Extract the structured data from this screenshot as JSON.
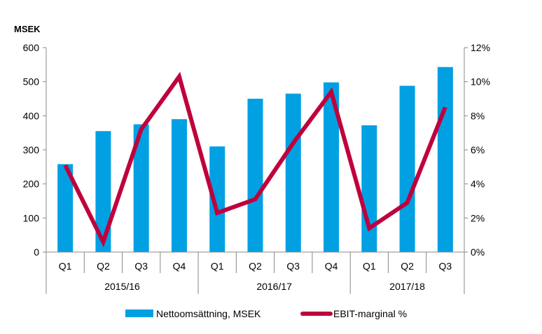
{
  "chart_data": {
    "type": "bar+line",
    "unit_label": "MSEK",
    "periods": [
      {
        "label": "2015/16",
        "quarters": [
          "Q1",
          "Q2",
          "Q3",
          "Q4"
        ]
      },
      {
        "label": "2016/17",
        "quarters": [
          "Q1",
          "Q2",
          "Q3",
          "Q4"
        ]
      },
      {
        "label": "2017/18",
        "quarters": [
          "Q1",
          "Q2",
          "Q3"
        ]
      }
    ],
    "categories": [
      "Q1",
      "Q2",
      "Q3",
      "Q4",
      "Q1",
      "Q2",
      "Q3",
      "Q4",
      "Q1",
      "Q2",
      "Q3"
    ],
    "series": [
      {
        "name": "Nettoomsättning, MSEK",
        "type": "bar",
        "axis": "left",
        "color": "#00a0e3",
        "values": [
          258,
          355,
          375,
          390,
          310,
          450,
          465,
          498,
          372,
          488,
          543
        ]
      },
      {
        "name": "EBIT-marginal %",
        "type": "line",
        "axis": "right",
        "color": "#c0003c",
        "values": [
          5.1,
          0.6,
          7.2,
          10.3,
          2.3,
          3.1,
          6.4,
          9.4,
          1.4,
          2.9,
          8.5
        ]
      }
    ],
    "y_left": {
      "min": 0,
      "max": 600,
      "ticks": [
        "0",
        "100",
        "200",
        "300",
        "400",
        "500",
        "600"
      ]
    },
    "y_right": {
      "min": 0,
      "max": 12,
      "ticks": [
        "0%",
        "2%",
        "4%",
        "6%",
        "8%",
        "10%",
        "12%"
      ]
    },
    "legend_position": "bottom",
    "grid": false
  }
}
